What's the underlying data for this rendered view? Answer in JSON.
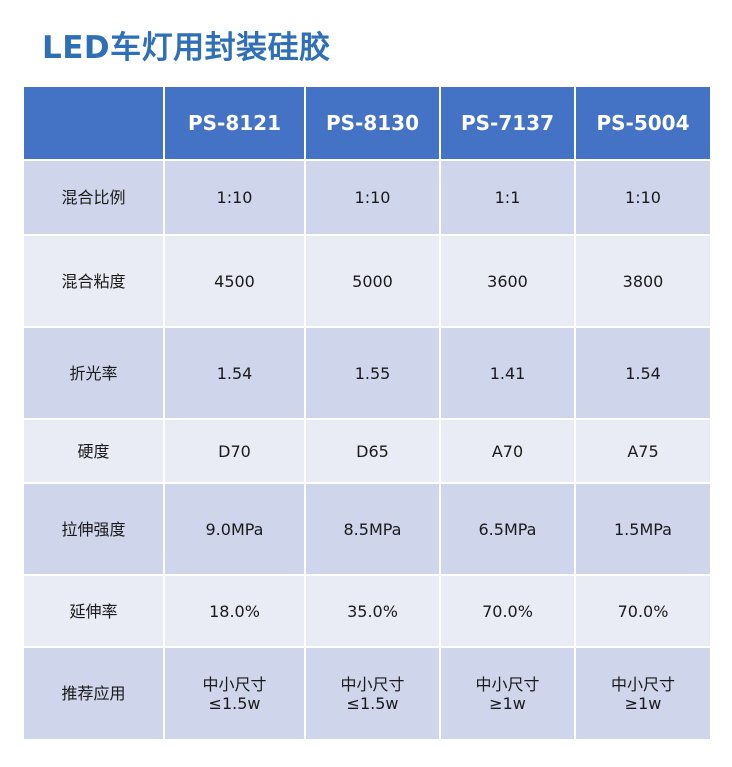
{
  "title": "LED车灯用封装硅胶",
  "table": {
    "headers": [
      "",
      "PS-8121",
      "PS-8130",
      "PS-7137",
      "PS-5004"
    ],
    "rows": [
      {
        "label": "混合比例",
        "values": [
          "1:10",
          "1:10",
          "1:1",
          "1:10"
        ]
      },
      {
        "label": "混合粘度",
        "values": [
          "4500",
          "5000",
          "3600",
          "3800"
        ]
      },
      {
        "label": "折光率",
        "values": [
          "1.54",
          "1.55",
          "1.41",
          "1.54"
        ]
      },
      {
        "label": "硬度",
        "values": [
          "D70",
          "D65",
          "A70",
          "A75"
        ]
      },
      {
        "label": "拉伸强度",
        "values": [
          "9.0MPa",
          "8.5MPa",
          "6.5MPa",
          "1.5MPa"
        ]
      },
      {
        "label": "延伸率",
        "values": [
          "18.0%",
          "35.0%",
          "70.0%",
          "70.0%"
        ]
      },
      {
        "label": "推荐应用",
        "values": [
          [
            "中小尺寸",
            "≤1.5w"
          ],
          [
            "中小尺寸",
            "≤1.5w"
          ],
          [
            "中小尺寸",
            "≥1w"
          ],
          [
            "中小尺寸",
            "≥1w"
          ]
        ]
      }
    ]
  },
  "colors": {
    "title": "#2f6fb6",
    "header_bg": "#4472c4",
    "row_odd": "#cfd5ea",
    "row_even": "#e9ebf5"
  }
}
